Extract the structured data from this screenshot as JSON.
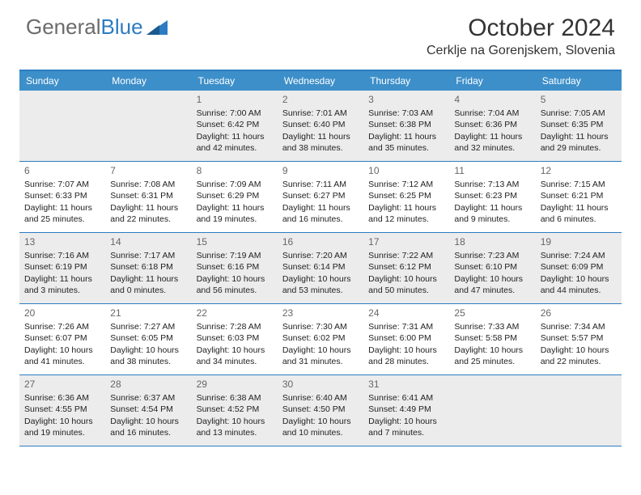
{
  "logo": {
    "text1": "General",
    "text2": "Blue"
  },
  "title": "October 2024",
  "location": "Cerklje na Gorenjskem, Slovenia",
  "colors": {
    "header_bg": "#3d8fc9",
    "border": "#2d7cc1",
    "shaded": "#ececec",
    "text": "#222222",
    "logo_gray": "#6b6b6b",
    "logo_blue": "#2d7cc1"
  },
  "dayNames": [
    "Sunday",
    "Monday",
    "Tuesday",
    "Wednesday",
    "Thursday",
    "Friday",
    "Saturday"
  ],
  "weeks": [
    [
      {
        "n": "",
        "sr": "",
        "ss": "",
        "d1": "",
        "d2": ""
      },
      {
        "n": "",
        "sr": "",
        "ss": "",
        "d1": "",
        "d2": ""
      },
      {
        "n": "1",
        "sr": "Sunrise: 7:00 AM",
        "ss": "Sunset: 6:42 PM",
        "d1": "Daylight: 11 hours",
        "d2": "and 42 minutes."
      },
      {
        "n": "2",
        "sr": "Sunrise: 7:01 AM",
        "ss": "Sunset: 6:40 PM",
        "d1": "Daylight: 11 hours",
        "d2": "and 38 minutes."
      },
      {
        "n": "3",
        "sr": "Sunrise: 7:03 AM",
        "ss": "Sunset: 6:38 PM",
        "d1": "Daylight: 11 hours",
        "d2": "and 35 minutes."
      },
      {
        "n": "4",
        "sr": "Sunrise: 7:04 AM",
        "ss": "Sunset: 6:36 PM",
        "d1": "Daylight: 11 hours",
        "d2": "and 32 minutes."
      },
      {
        "n": "5",
        "sr": "Sunrise: 7:05 AM",
        "ss": "Sunset: 6:35 PM",
        "d1": "Daylight: 11 hours",
        "d2": "and 29 minutes."
      }
    ],
    [
      {
        "n": "6",
        "sr": "Sunrise: 7:07 AM",
        "ss": "Sunset: 6:33 PM",
        "d1": "Daylight: 11 hours",
        "d2": "and 25 minutes."
      },
      {
        "n": "7",
        "sr": "Sunrise: 7:08 AM",
        "ss": "Sunset: 6:31 PM",
        "d1": "Daylight: 11 hours",
        "d2": "and 22 minutes."
      },
      {
        "n": "8",
        "sr": "Sunrise: 7:09 AM",
        "ss": "Sunset: 6:29 PM",
        "d1": "Daylight: 11 hours",
        "d2": "and 19 minutes."
      },
      {
        "n": "9",
        "sr": "Sunrise: 7:11 AM",
        "ss": "Sunset: 6:27 PM",
        "d1": "Daylight: 11 hours",
        "d2": "and 16 minutes."
      },
      {
        "n": "10",
        "sr": "Sunrise: 7:12 AM",
        "ss": "Sunset: 6:25 PM",
        "d1": "Daylight: 11 hours",
        "d2": "and 12 minutes."
      },
      {
        "n": "11",
        "sr": "Sunrise: 7:13 AM",
        "ss": "Sunset: 6:23 PM",
        "d1": "Daylight: 11 hours",
        "d2": "and 9 minutes."
      },
      {
        "n": "12",
        "sr": "Sunrise: 7:15 AM",
        "ss": "Sunset: 6:21 PM",
        "d1": "Daylight: 11 hours",
        "d2": "and 6 minutes."
      }
    ],
    [
      {
        "n": "13",
        "sr": "Sunrise: 7:16 AM",
        "ss": "Sunset: 6:19 PM",
        "d1": "Daylight: 11 hours",
        "d2": "and 3 minutes."
      },
      {
        "n": "14",
        "sr": "Sunrise: 7:17 AM",
        "ss": "Sunset: 6:18 PM",
        "d1": "Daylight: 11 hours",
        "d2": "and 0 minutes."
      },
      {
        "n": "15",
        "sr": "Sunrise: 7:19 AM",
        "ss": "Sunset: 6:16 PM",
        "d1": "Daylight: 10 hours",
        "d2": "and 56 minutes."
      },
      {
        "n": "16",
        "sr": "Sunrise: 7:20 AM",
        "ss": "Sunset: 6:14 PM",
        "d1": "Daylight: 10 hours",
        "d2": "and 53 minutes."
      },
      {
        "n": "17",
        "sr": "Sunrise: 7:22 AM",
        "ss": "Sunset: 6:12 PM",
        "d1": "Daylight: 10 hours",
        "d2": "and 50 minutes."
      },
      {
        "n": "18",
        "sr": "Sunrise: 7:23 AM",
        "ss": "Sunset: 6:10 PM",
        "d1": "Daylight: 10 hours",
        "d2": "and 47 minutes."
      },
      {
        "n": "19",
        "sr": "Sunrise: 7:24 AM",
        "ss": "Sunset: 6:09 PM",
        "d1": "Daylight: 10 hours",
        "d2": "and 44 minutes."
      }
    ],
    [
      {
        "n": "20",
        "sr": "Sunrise: 7:26 AM",
        "ss": "Sunset: 6:07 PM",
        "d1": "Daylight: 10 hours",
        "d2": "and 41 minutes."
      },
      {
        "n": "21",
        "sr": "Sunrise: 7:27 AM",
        "ss": "Sunset: 6:05 PM",
        "d1": "Daylight: 10 hours",
        "d2": "and 38 minutes."
      },
      {
        "n": "22",
        "sr": "Sunrise: 7:28 AM",
        "ss": "Sunset: 6:03 PM",
        "d1": "Daylight: 10 hours",
        "d2": "and 34 minutes."
      },
      {
        "n": "23",
        "sr": "Sunrise: 7:30 AM",
        "ss": "Sunset: 6:02 PM",
        "d1": "Daylight: 10 hours",
        "d2": "and 31 minutes."
      },
      {
        "n": "24",
        "sr": "Sunrise: 7:31 AM",
        "ss": "Sunset: 6:00 PM",
        "d1": "Daylight: 10 hours",
        "d2": "and 28 minutes."
      },
      {
        "n": "25",
        "sr": "Sunrise: 7:33 AM",
        "ss": "Sunset: 5:58 PM",
        "d1": "Daylight: 10 hours",
        "d2": "and 25 minutes."
      },
      {
        "n": "26",
        "sr": "Sunrise: 7:34 AM",
        "ss": "Sunset: 5:57 PM",
        "d1": "Daylight: 10 hours",
        "d2": "and 22 minutes."
      }
    ],
    [
      {
        "n": "27",
        "sr": "Sunrise: 6:36 AM",
        "ss": "Sunset: 4:55 PM",
        "d1": "Daylight: 10 hours",
        "d2": "and 19 minutes."
      },
      {
        "n": "28",
        "sr": "Sunrise: 6:37 AM",
        "ss": "Sunset: 4:54 PM",
        "d1": "Daylight: 10 hours",
        "d2": "and 16 minutes."
      },
      {
        "n": "29",
        "sr": "Sunrise: 6:38 AM",
        "ss": "Sunset: 4:52 PM",
        "d1": "Daylight: 10 hours",
        "d2": "and 13 minutes."
      },
      {
        "n": "30",
        "sr": "Sunrise: 6:40 AM",
        "ss": "Sunset: 4:50 PM",
        "d1": "Daylight: 10 hours",
        "d2": "and 10 minutes."
      },
      {
        "n": "31",
        "sr": "Sunrise: 6:41 AM",
        "ss": "Sunset: 4:49 PM",
        "d1": "Daylight: 10 hours",
        "d2": "and 7 minutes."
      },
      {
        "n": "",
        "sr": "",
        "ss": "",
        "d1": "",
        "d2": ""
      },
      {
        "n": "",
        "sr": "",
        "ss": "",
        "d1": "",
        "d2": ""
      }
    ]
  ]
}
